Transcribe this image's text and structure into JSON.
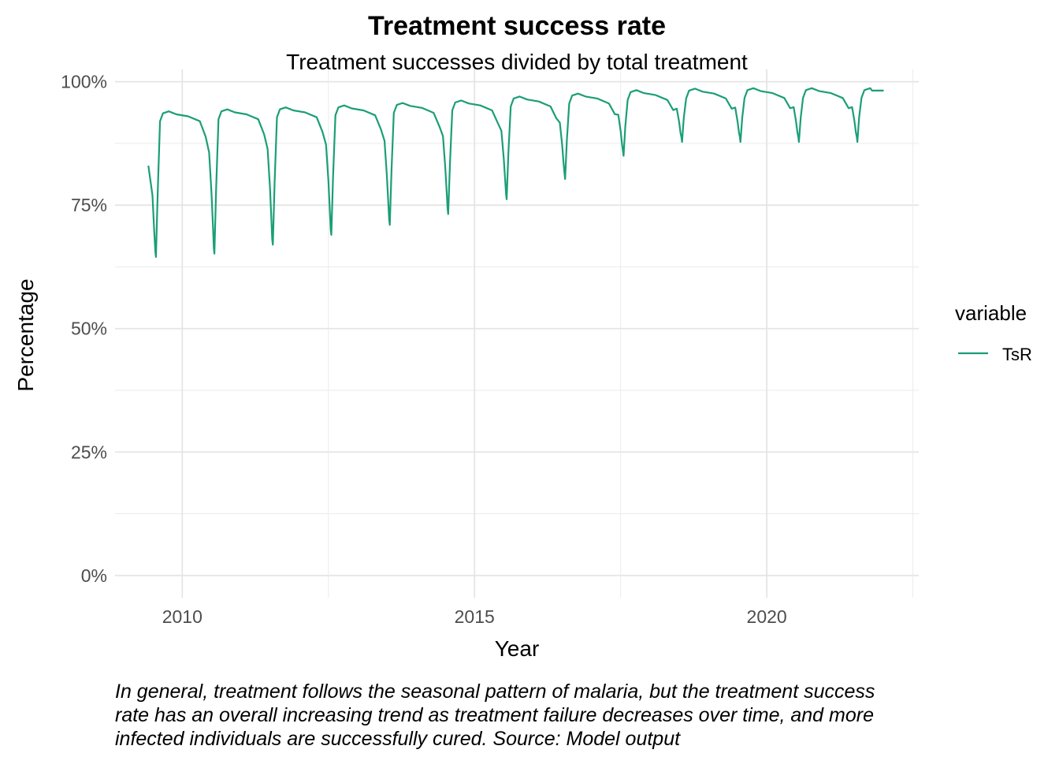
{
  "chart_data": {
    "type": "line",
    "title": "Treatment success rate",
    "subtitle": "Treatment successes divided by total treatment",
    "xlabel": "Year",
    "ylabel": "Percentage",
    "x_ticks": [
      2010,
      2015,
      2020
    ],
    "y_ticks": [
      "0%",
      "25%",
      "50%",
      "75%",
      "100%"
    ],
    "xlim": [
      2008.85,
      2022.6
    ],
    "ylim": [
      -0.045,
      1.025
    ],
    "grid": true,
    "legend": {
      "title": "variable",
      "position": "right",
      "entries": [
        "TsR"
      ]
    },
    "colors": {
      "TsR": "#1b9e77"
    },
    "series": [
      {
        "name": "TsR",
        "season_pattern": "yearly minimum near mid-year, sharp recovery then slow decline",
        "start_year": 2009.42,
        "start_value": 0.83,
        "end_year": 2022.0,
        "end_value": 0.982,
        "yearly_cycles": [
          {
            "year": 2009,
            "trough_x": 2009.55,
            "trough": 0.645,
            "peak": 0.94
          },
          {
            "year": 2010,
            "trough_x": 2010.55,
            "trough": 0.652,
            "peak": 0.944
          },
          {
            "year": 2011,
            "trough_x": 2011.55,
            "trough": 0.67,
            "peak": 0.948
          },
          {
            "year": 2012,
            "trough_x": 2012.55,
            "trough": 0.69,
            "peak": 0.952
          },
          {
            "year": 2013,
            "trough_x": 2013.55,
            "trough": 0.71,
            "peak": 0.957
          },
          {
            "year": 2014,
            "trough_x": 2014.55,
            "trough": 0.732,
            "peak": 0.962
          },
          {
            "year": 2015,
            "trough_x": 2015.55,
            "trough": 0.762,
            "peak": 0.97
          },
          {
            "year": 2016,
            "trough_x": 2016.55,
            "trough": 0.803,
            "peak": 0.976
          },
          {
            "year": 2017,
            "trough_x": 2017.55,
            "trough": 0.85,
            "peak": 0.983
          },
          {
            "year": 2018,
            "trough_x": 2018.55,
            "trough": 0.878,
            "peak": 0.986
          },
          {
            "year": 2019,
            "trough_x": 2019.55,
            "trough": 0.878,
            "peak": 0.987
          },
          {
            "year": 2020,
            "trough_x": 2020.55,
            "trough": 0.878,
            "peak": 0.987
          },
          {
            "year": 2021,
            "trough_x": 2021.55,
            "trough": 0.878,
            "peak": 0.987
          }
        ]
      }
    ]
  },
  "caption": "In general, treatment follows the seasonal pattern of malaria, but the treatment success rate has an overall increasing trend as treatment failure decreases over time, and more infected individuals are successfully cured. Source: Model output"
}
